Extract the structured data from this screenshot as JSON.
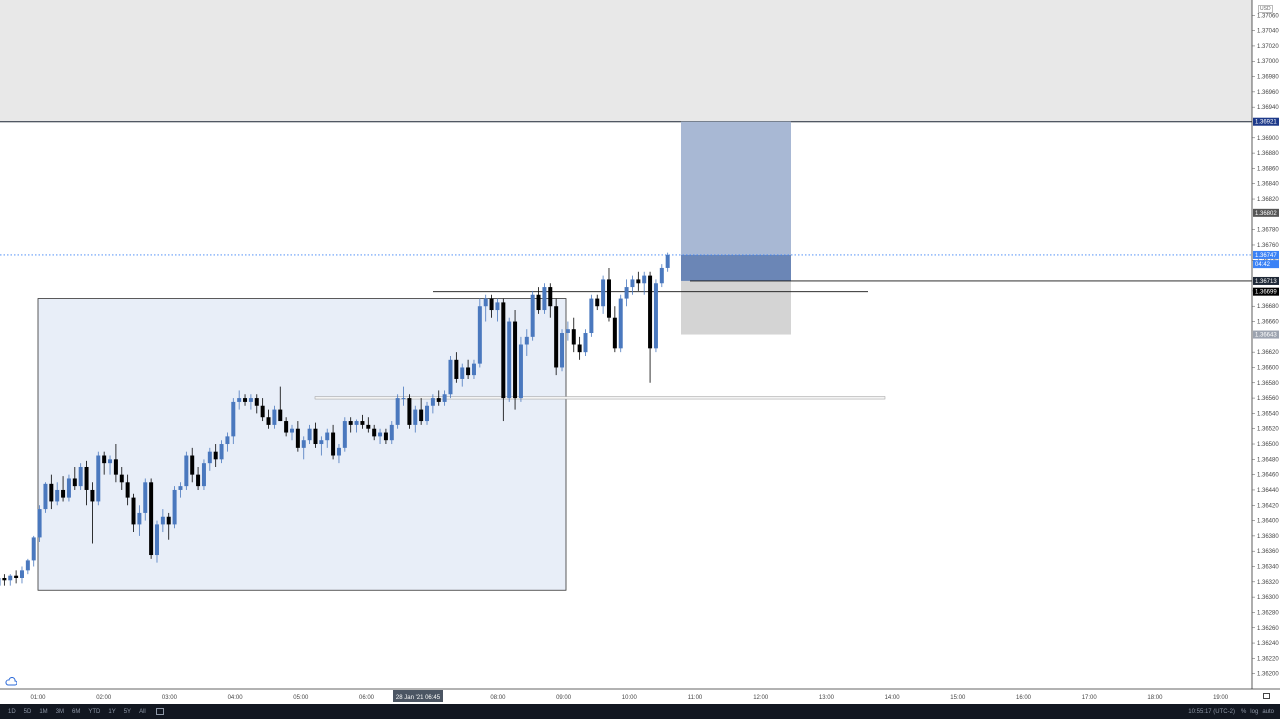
{
  "chart_data": {
    "type": "candlestick",
    "title": "",
    "x_axis": {
      "tick_labels": [
        "01:00",
        "02:00",
        "03:00",
        "04:00",
        "05:00",
        "06:00",
        "08:00",
        "09:00",
        "10:00",
        "11:00",
        "12:00",
        "13:00",
        "14:00",
        "15:00",
        "16:00",
        "17:00",
        "18:00",
        "19:00"
      ],
      "crosshair_label": "28 Jan '21   06:45"
    },
    "y_axis": {
      "side": "right",
      "range": [
        1.3618,
        1.3708
      ],
      "tick_labels": [
        "1.37060",
        "1.37040",
        "1.37020",
        "1.37000",
        "1.36980",
        "1.36960",
        "1.36940",
        "1.36900",
        "1.36880",
        "1.36860",
        "1.36840",
        "1.36820",
        "1.36780",
        "1.36760",
        "1.36740",
        "1.36700",
        "1.36680",
        "1.36660",
        "1.36620",
        "1.36600",
        "1.36580",
        "1.36560",
        "1.36540",
        "1.36520",
        "1.36500",
        "1.36480",
        "1.36460",
        "1.36440",
        "1.36420",
        "1.36400",
        "1.36380",
        "1.36360",
        "1.36340",
        "1.36320",
        "1.36300",
        "1.36280",
        "1.36260",
        "1.36240",
        "1.36220",
        "1.36200"
      ],
      "currency": "USD"
    },
    "price_labels": [
      {
        "text": "1.36921",
        "value": 1.36921,
        "color": "#1e3a8a"
      },
      {
        "text": "1.36802",
        "value": 1.36802,
        "color": "#555555"
      },
      {
        "text": "1.36747",
        "value": 1.36747,
        "color": "#3b82f6"
      },
      {
        "text": "04:42",
        "value": 1.36735,
        "color": "#3b82f6"
      },
      {
        "text": "1.36713",
        "value": 1.36713,
        "color": "#1f2937"
      },
      {
        "text": "1.36699",
        "value": 1.36699,
        "color": "#000000"
      },
      {
        "text": "1.36643",
        "value": 1.36643,
        "color": "#9ca3af"
      }
    ],
    "colors": {
      "up": "#4a78be",
      "down": "#000000",
      "box": "#e8eef8",
      "box_border": "#333333",
      "supply_zone": "#e8e8e8",
      "target": "#a8b8d4",
      "entry": "#6b86b6",
      "stop": "#d4d4d4",
      "current_line": "#3b82f6"
    },
    "candles": [
      {
        "t": 0,
        "o": 1.36315,
        "h": 1.36325,
        "l": 1.3631,
        "c": 1.36325
      },
      {
        "t": 1,
        "o": 1.36325,
        "h": 1.3633,
        "l": 1.36315,
        "c": 1.36322
      },
      {
        "t": 2,
        "o": 1.36322,
        "h": 1.3633,
        "l": 1.36315,
        "c": 1.36328
      },
      {
        "t": 3,
        "o": 1.36328,
        "h": 1.36335,
        "l": 1.36318,
        "c": 1.36325
      },
      {
        "t": 4,
        "o": 1.36325,
        "h": 1.3634,
        "l": 1.36318,
        "c": 1.36335
      },
      {
        "t": 5,
        "o": 1.36335,
        "h": 1.3635,
        "l": 1.3633,
        "c": 1.36348
      },
      {
        "t": 6,
        "o": 1.36348,
        "h": 1.3638,
        "l": 1.3634,
        "c": 1.36378
      },
      {
        "t": 7,
        "o": 1.36378,
        "h": 1.3642,
        "l": 1.36372,
        "c": 1.36415
      },
      {
        "t": 8,
        "o": 1.36415,
        "h": 1.3645,
        "l": 1.3641,
        "c": 1.36448
      },
      {
        "t": 9,
        "o": 1.36448,
        "h": 1.3646,
        "l": 1.36415,
        "c": 1.36425
      },
      {
        "t": 10,
        "o": 1.36425,
        "h": 1.3645,
        "l": 1.3642,
        "c": 1.3644
      },
      {
        "t": 11,
        "o": 1.3644,
        "h": 1.36458,
        "l": 1.36425,
        "c": 1.3643
      },
      {
        "t": 12,
        "o": 1.3643,
        "h": 1.3646,
        "l": 1.36425,
        "c": 1.36455
      },
      {
        "t": 13,
        "o": 1.36455,
        "h": 1.3647,
        "l": 1.3644,
        "c": 1.36445
      },
      {
        "t": 14,
        "o": 1.36445,
        "h": 1.36475,
        "l": 1.3644,
        "c": 1.3647
      },
      {
        "t": 15,
        "o": 1.3647,
        "h": 1.36478,
        "l": 1.3642,
        "c": 1.3644
      },
      {
        "t": 16,
        "o": 1.3644,
        "h": 1.3645,
        "l": 1.3637,
        "c": 1.36425
      },
      {
        "t": 17,
        "o": 1.36425,
        "h": 1.3649,
        "l": 1.3642,
        "c": 1.36485
      },
      {
        "t": 18,
        "o": 1.36485,
        "h": 1.3649,
        "l": 1.3646,
        "c": 1.36475
      },
      {
        "t": 19,
        "o": 1.36475,
        "h": 1.36485,
        "l": 1.3646,
        "c": 1.3648
      },
      {
        "t": 20,
        "o": 1.3648,
        "h": 1.365,
        "l": 1.3645,
        "c": 1.3646
      },
      {
        "t": 21,
        "o": 1.3646,
        "h": 1.3647,
        "l": 1.3644,
        "c": 1.3645
      },
      {
        "t": 22,
        "o": 1.3645,
        "h": 1.3646,
        "l": 1.3642,
        "c": 1.3643
      },
      {
        "t": 23,
        "o": 1.3643,
        "h": 1.36435,
        "l": 1.36385,
        "c": 1.36395
      },
      {
        "t": 24,
        "o": 1.36395,
        "h": 1.3642,
        "l": 1.3638,
        "c": 1.3641
      },
      {
        "t": 25,
        "o": 1.3641,
        "h": 1.36455,
        "l": 1.364,
        "c": 1.3645
      },
      {
        "t": 26,
        "o": 1.3645,
        "h": 1.36455,
        "l": 1.3635,
        "c": 1.36355
      },
      {
        "t": 27,
        "o": 1.36355,
        "h": 1.364,
        "l": 1.36345,
        "c": 1.36395
      },
      {
        "t": 28,
        "o": 1.36395,
        "h": 1.36415,
        "l": 1.36385,
        "c": 1.36405
      },
      {
        "t": 29,
        "o": 1.36405,
        "h": 1.3641,
        "l": 1.36375,
        "c": 1.36395
      },
      {
        "t": 30,
        "o": 1.36395,
        "h": 1.36445,
        "l": 1.3639,
        "c": 1.3644
      },
      {
        "t": 31,
        "o": 1.3644,
        "h": 1.3645,
        "l": 1.3643,
        "c": 1.36445
      },
      {
        "t": 32,
        "o": 1.36445,
        "h": 1.3649,
        "l": 1.3644,
        "c": 1.36485
      },
      {
        "t": 33,
        "o": 1.36485,
        "h": 1.36495,
        "l": 1.3645,
        "c": 1.3646
      },
      {
        "t": 34,
        "o": 1.3646,
        "h": 1.3647,
        "l": 1.3644,
        "c": 1.36445
      },
      {
        "t": 35,
        "o": 1.36445,
        "h": 1.3648,
        "l": 1.3644,
        "c": 1.36475
      },
      {
        "t": 36,
        "o": 1.36475,
        "h": 1.36495,
        "l": 1.36465,
        "c": 1.3649
      },
      {
        "t": 37,
        "o": 1.3649,
        "h": 1.365,
        "l": 1.3647,
        "c": 1.3648
      },
      {
        "t": 38,
        "o": 1.3648,
        "h": 1.36505,
        "l": 1.36475,
        "c": 1.365
      },
      {
        "t": 39,
        "o": 1.365,
        "h": 1.36515,
        "l": 1.3649,
        "c": 1.3651
      },
      {
        "t": 40,
        "o": 1.3651,
        "h": 1.3656,
        "l": 1.365,
        "c": 1.36555
      },
      {
        "t": 41,
        "o": 1.36555,
        "h": 1.3657,
        "l": 1.36545,
        "c": 1.3656
      },
      {
        "t": 42,
        "o": 1.3656,
        "h": 1.36565,
        "l": 1.3655,
        "c": 1.36555
      },
      {
        "t": 43,
        "o": 1.36555,
        "h": 1.36565,
        "l": 1.36545,
        "c": 1.3656
      },
      {
        "t": 44,
        "o": 1.3656,
        "h": 1.36565,
        "l": 1.3654,
        "c": 1.3655
      },
      {
        "t": 45,
        "o": 1.3655,
        "h": 1.3656,
        "l": 1.3653,
        "c": 1.36535
      },
      {
        "t": 46,
        "o": 1.36535,
        "h": 1.36545,
        "l": 1.3652,
        "c": 1.36525
      },
      {
        "t": 47,
        "o": 1.36525,
        "h": 1.3655,
        "l": 1.3652,
        "c": 1.36545
      },
      {
        "t": 48,
        "o": 1.36545,
        "h": 1.36575,
        "l": 1.3653,
        "c": 1.3653
      },
      {
        "t": 49,
        "o": 1.3653,
        "h": 1.36535,
        "l": 1.3651,
        "c": 1.36515
      },
      {
        "t": 50,
        "o": 1.36515,
        "h": 1.36525,
        "l": 1.36505,
        "c": 1.3652
      },
      {
        "t": 51,
        "o": 1.3652,
        "h": 1.3653,
        "l": 1.3649,
        "c": 1.36495
      },
      {
        "t": 52,
        "o": 1.36495,
        "h": 1.3651,
        "l": 1.3648,
        "c": 1.36505
      },
      {
        "t": 53,
        "o": 1.36505,
        "h": 1.36525,
        "l": 1.365,
        "c": 1.3652
      },
      {
        "t": 54,
        "o": 1.3652,
        "h": 1.36528,
        "l": 1.36495,
        "c": 1.365
      },
      {
        "t": 55,
        "o": 1.365,
        "h": 1.3651,
        "l": 1.36485,
        "c": 1.36505
      },
      {
        "t": 56,
        "o": 1.36505,
        "h": 1.3652,
        "l": 1.36495,
        "c": 1.36515
      },
      {
        "t": 57,
        "o": 1.36515,
        "h": 1.36525,
        "l": 1.3648,
        "c": 1.36485
      },
      {
        "t": 58,
        "o": 1.36485,
        "h": 1.365,
        "l": 1.36475,
        "c": 1.36495
      },
      {
        "t": 59,
        "o": 1.36495,
        "h": 1.36535,
        "l": 1.3649,
        "c": 1.3653
      },
      {
        "t": 60,
        "o": 1.3653,
        "h": 1.36535,
        "l": 1.36515,
        "c": 1.36525
      },
      {
        "t": 61,
        "o": 1.36525,
        "h": 1.36532,
        "l": 1.36515,
        "c": 1.3653
      },
      {
        "t": 62,
        "o": 1.3653,
        "h": 1.36538,
        "l": 1.3652,
        "c": 1.36525
      },
      {
        "t": 63,
        "o": 1.36525,
        "h": 1.36535,
        "l": 1.36515,
        "c": 1.3652
      },
      {
        "t": 64,
        "o": 1.3652,
        "h": 1.36525,
        "l": 1.36505,
        "c": 1.3651
      },
      {
        "t": 65,
        "o": 1.3651,
        "h": 1.3652,
        "l": 1.365,
        "c": 1.36515
      },
      {
        "t": 66,
        "o": 1.36515,
        "h": 1.3652,
        "l": 1.365,
        "c": 1.36505
      },
      {
        "t": 67,
        "o": 1.36505,
        "h": 1.3653,
        "l": 1.365,
        "c": 1.36525
      },
      {
        "t": 68,
        "o": 1.36525,
        "h": 1.36565,
        "l": 1.3652,
        "c": 1.3656
      },
      {
        "t": 69,
        "o": 1.3656,
        "h": 1.36575,
        "l": 1.3655,
        "c": 1.3656
      },
      {
        "t": 70,
        "o": 1.3656,
        "h": 1.36565,
        "l": 1.3652,
        "c": 1.36525
      },
      {
        "t": 71,
        "o": 1.36525,
        "h": 1.3655,
        "l": 1.36515,
        "c": 1.36545
      },
      {
        "t": 72,
        "o": 1.36545,
        "h": 1.3656,
        "l": 1.36525,
        "c": 1.3653
      },
      {
        "t": 73,
        "o": 1.3653,
        "h": 1.36555,
        "l": 1.36525,
        "c": 1.3655
      },
      {
        "t": 74,
        "o": 1.3655,
        "h": 1.36565,
        "l": 1.3654,
        "c": 1.3656
      },
      {
        "t": 75,
        "o": 1.3656,
        "h": 1.3657,
        "l": 1.3655,
        "c": 1.36555
      },
      {
        "t": 76,
        "o": 1.36555,
        "h": 1.3657,
        "l": 1.3655,
        "c": 1.36565
      },
      {
        "t": 77,
        "o": 1.36565,
        "h": 1.36615,
        "l": 1.3656,
        "c": 1.3661
      },
      {
        "t": 78,
        "o": 1.3661,
        "h": 1.3662,
        "l": 1.3658,
        "c": 1.36585
      },
      {
        "t": 79,
        "o": 1.36585,
        "h": 1.36605,
        "l": 1.36575,
        "c": 1.366
      },
      {
        "t": 80,
        "o": 1.366,
        "h": 1.3661,
        "l": 1.36585,
        "c": 1.3659
      },
      {
        "t": 81,
        "o": 1.3659,
        "h": 1.3661,
        "l": 1.36585,
        "c": 1.36605
      },
      {
        "t": 82,
        "o": 1.36605,
        "h": 1.3669,
        "l": 1.366,
        "c": 1.3668
      },
      {
        "t": 83,
        "o": 1.3668,
        "h": 1.36695,
        "l": 1.3666,
        "c": 1.3669
      },
      {
        "t": 84,
        "o": 1.3669,
        "h": 1.36695,
        "l": 1.36665,
        "c": 1.36675
      },
      {
        "t": 85,
        "o": 1.36675,
        "h": 1.3669,
        "l": 1.3666,
        "c": 1.36685
      },
      {
        "t": 86,
        "o": 1.36685,
        "h": 1.3669,
        "l": 1.3653,
        "c": 1.3656
      },
      {
        "t": 87,
        "o": 1.3656,
        "h": 1.36665,
        "l": 1.36555,
        "c": 1.3666
      },
      {
        "t": 88,
        "o": 1.3666,
        "h": 1.36675,
        "l": 1.36545,
        "c": 1.3656
      },
      {
        "t": 89,
        "o": 1.3656,
        "h": 1.3664,
        "l": 1.36555,
        "c": 1.3663
      },
      {
        "t": 90,
        "o": 1.3663,
        "h": 1.3665,
        "l": 1.36615,
        "c": 1.3664
      },
      {
        "t": 91,
        "o": 1.3664,
        "h": 1.367,
        "l": 1.36635,
        "c": 1.36695
      },
      {
        "t": 92,
        "o": 1.36695,
        "h": 1.36705,
        "l": 1.3667,
        "c": 1.36675
      },
      {
        "t": 93,
        "o": 1.36675,
        "h": 1.3671,
        "l": 1.3667,
        "c": 1.36705
      },
      {
        "t": 94,
        "o": 1.36705,
        "h": 1.3671,
        "l": 1.36665,
        "c": 1.3668
      },
      {
        "t": 95,
        "o": 1.3668,
        "h": 1.3669,
        "l": 1.3659,
        "c": 1.366
      },
      {
        "t": 96,
        "o": 1.366,
        "h": 1.3665,
        "l": 1.36595,
        "c": 1.36645
      },
      {
        "t": 97,
        "o": 1.36645,
        "h": 1.3666,
        "l": 1.36635,
        "c": 1.3665
      },
      {
        "t": 98,
        "o": 1.3665,
        "h": 1.36665,
        "l": 1.3662,
        "c": 1.3663
      },
      {
        "t": 99,
        "o": 1.3663,
        "h": 1.3664,
        "l": 1.3661,
        "c": 1.3662
      },
      {
        "t": 100,
        "o": 1.3662,
        "h": 1.3665,
        "l": 1.36615,
        "c": 1.36645
      },
      {
        "t": 101,
        "o": 1.36645,
        "h": 1.36695,
        "l": 1.3664,
        "c": 1.3669
      },
      {
        "t": 102,
        "o": 1.3669,
        "h": 1.36695,
        "l": 1.36675,
        "c": 1.3668
      },
      {
        "t": 103,
        "o": 1.3668,
        "h": 1.3672,
        "l": 1.3667,
        "c": 1.36715
      },
      {
        "t": 104,
        "o": 1.36715,
        "h": 1.3673,
        "l": 1.3666,
        "c": 1.36665
      },
      {
        "t": 105,
        "o": 1.36665,
        "h": 1.3668,
        "l": 1.3662,
        "c": 1.36625
      },
      {
        "t": 106,
        "o": 1.36625,
        "h": 1.36695,
        "l": 1.3662,
        "c": 1.3669
      },
      {
        "t": 107,
        "o": 1.3669,
        "h": 1.36715,
        "l": 1.3668,
        "c": 1.36705
      },
      {
        "t": 108,
        "o": 1.36705,
        "h": 1.3672,
        "l": 1.36695,
        "c": 1.36715
      },
      {
        "t": 109,
        "o": 1.36715,
        "h": 1.36725,
        "l": 1.367,
        "c": 1.3671
      },
      {
        "t": 110,
        "o": 1.3671,
        "h": 1.36725,
        "l": 1.36695,
        "c": 1.3672
      },
      {
        "t": 111,
        "o": 1.3672,
        "h": 1.36725,
        "l": 1.3658,
        "c": 1.36625
      },
      {
        "t": 112,
        "o": 1.36625,
        "h": 1.36715,
        "l": 1.3662,
        "c": 1.3671
      },
      {
        "t": 113,
        "o": 1.3671,
        "h": 1.36735,
        "l": 1.36705,
        "c": 1.3673
      },
      {
        "t": 114,
        "o": 1.3673,
        "h": 1.3675,
        "l": 1.36725,
        "c": 1.36747
      }
    ]
  },
  "toolbar": {
    "ranges": [
      "1D",
      "5D",
      "1M",
      "3M",
      "6M",
      "YTD",
      "1Y",
      "5Y",
      "All"
    ],
    "time": "10:55:17 (UTC-2)",
    "options": [
      "%",
      "log",
      "auto"
    ]
  }
}
